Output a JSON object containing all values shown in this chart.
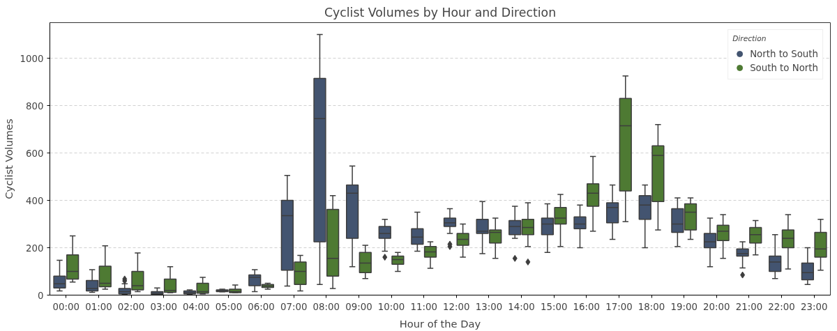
{
  "chart_data": {
    "type": "box",
    "title": "Cyclist Volumes by Hour and Direction",
    "xlabel": "Hour of the Day",
    "ylabel": "Cyclist Volumes",
    "legend_title": "Direction",
    "legend": "top right",
    "grid": "y",
    "categories": [
      "00:00",
      "01:00",
      "02:00",
      "03:00",
      "04:00",
      "05:00",
      "06:00",
      "07:00",
      "08:00",
      "09:00",
      "10:00",
      "11:00",
      "12:00",
      "13:00",
      "14:00",
      "15:00",
      "16:00",
      "17:00",
      "18:00",
      "19:00",
      "20:00",
      "21:00",
      "22:00",
      "23:00"
    ],
    "ylim": [
      0,
      1150
    ],
    "yticks": [
      0,
      200,
      400,
      600,
      800,
      1000
    ],
    "series": [
      {
        "name": "North to South",
        "color": "#435470",
        "boxes": [
          {
            "low": 18,
            "q1": 30,
            "median": 48,
            "q3": 80,
            "high": 147
          },
          {
            "low": 12,
            "q1": 18,
            "median": 28,
            "q3": 62,
            "high": 107
          },
          {
            "low": 3,
            "q1": 5,
            "median": 15,
            "q3": 28,
            "high": 48,
            "outliers": [
              60,
              68
            ]
          },
          {
            "low": 2,
            "q1": 3,
            "median": 8,
            "q3": 15,
            "high": 30
          },
          {
            "low": 3,
            "q1": 5,
            "median": 10,
            "q3": 18,
            "high": 22
          },
          {
            "low": 14,
            "q1": 15,
            "median": 18,
            "q3": 22,
            "high": 25
          },
          {
            "low": 15,
            "q1": 40,
            "median": 75,
            "q3": 85,
            "high": 107
          },
          {
            "low": 38,
            "q1": 105,
            "median": 335,
            "q3": 400,
            "high": 505
          },
          {
            "low": 45,
            "q1": 225,
            "median": 745,
            "q3": 915,
            "high": 1100
          },
          {
            "low": 120,
            "q1": 240,
            "median": 430,
            "q3": 465,
            "high": 545
          },
          {
            "low": 185,
            "q1": 240,
            "median": 260,
            "q3": 290,
            "high": 320,
            "outliers": [
              160
            ]
          },
          {
            "low": 185,
            "q1": 215,
            "median": 245,
            "q3": 280,
            "high": 350
          },
          {
            "low": 260,
            "q1": 290,
            "median": 305,
            "q3": 325,
            "high": 365,
            "outliers": [
              205,
              215
            ]
          },
          {
            "low": 175,
            "q1": 260,
            "median": 270,
            "q3": 320,
            "high": 395
          },
          {
            "low": 240,
            "q1": 255,
            "median": 290,
            "q3": 315,
            "high": 375,
            "outliers": [
              155
            ]
          },
          {
            "low": 180,
            "q1": 255,
            "median": 300,
            "q3": 325,
            "high": 385
          },
          {
            "low": 200,
            "q1": 280,
            "median": 300,
            "q3": 330,
            "high": 380
          },
          {
            "low": 235,
            "q1": 305,
            "median": 370,
            "q3": 390,
            "high": 465
          },
          {
            "low": 200,
            "q1": 320,
            "median": 380,
            "q3": 420,
            "high": 465
          },
          {
            "low": 205,
            "q1": 265,
            "median": 300,
            "q3": 365,
            "high": 410
          },
          {
            "low": 120,
            "q1": 200,
            "median": 225,
            "q3": 260,
            "high": 325
          },
          {
            "low": 115,
            "q1": 165,
            "median": 175,
            "q3": 195,
            "high": 225,
            "outliers": [
              85
            ]
          },
          {
            "low": 70,
            "q1": 100,
            "median": 140,
            "q3": 165,
            "high": 255
          },
          {
            "low": 45,
            "q1": 65,
            "median": 95,
            "q3": 135,
            "high": 200
          }
        ]
      },
      {
        "name": "South to North",
        "color": "#4e7a33",
        "boxes": [
          {
            "low": 55,
            "q1": 68,
            "median": 100,
            "q3": 170,
            "high": 250
          },
          {
            "low": 25,
            "q1": 35,
            "median": 50,
            "q3": 122,
            "high": 208
          },
          {
            "low": 15,
            "q1": 22,
            "median": 40,
            "q3": 100,
            "high": 178
          },
          {
            "low": 10,
            "q1": 12,
            "median": 20,
            "q3": 68,
            "high": 120
          },
          {
            "low": 5,
            "q1": 8,
            "median": 15,
            "q3": 50,
            "high": 75
          },
          {
            "low": 10,
            "q1": 10,
            "median": 15,
            "q3": 25,
            "high": 43
          },
          {
            "low": 25,
            "q1": 32,
            "median": 38,
            "q3": 45,
            "high": 50
          },
          {
            "low": 18,
            "q1": 45,
            "median": 100,
            "q3": 140,
            "high": 168
          },
          {
            "low": 28,
            "q1": 80,
            "median": 155,
            "q3": 362,
            "high": 420
          },
          {
            "low": 70,
            "q1": 95,
            "median": 135,
            "q3": 180,
            "high": 210
          },
          {
            "low": 100,
            "q1": 130,
            "median": 150,
            "q3": 165,
            "high": 180
          },
          {
            "low": 113,
            "q1": 160,
            "median": 182,
            "q3": 205,
            "high": 225
          },
          {
            "low": 160,
            "q1": 210,
            "median": 235,
            "q3": 260,
            "high": 300
          },
          {
            "low": 155,
            "q1": 220,
            "median": 265,
            "q3": 275,
            "high": 325
          },
          {
            "low": 205,
            "q1": 255,
            "median": 285,
            "q3": 320,
            "high": 390,
            "outliers": [
              140
            ]
          },
          {
            "low": 205,
            "q1": 300,
            "median": 325,
            "q3": 370,
            "high": 425
          },
          {
            "low": 270,
            "q1": 375,
            "median": 430,
            "q3": 470,
            "high": 585
          },
          {
            "low": 310,
            "q1": 440,
            "median": 715,
            "q3": 830,
            "high": 925
          },
          {
            "low": 275,
            "q1": 395,
            "median": 590,
            "q3": 630,
            "high": 720
          },
          {
            "low": 235,
            "q1": 275,
            "median": 350,
            "q3": 385,
            "high": 410
          },
          {
            "low": 155,
            "q1": 230,
            "median": 270,
            "q3": 295,
            "high": 340
          },
          {
            "low": 170,
            "q1": 220,
            "median": 255,
            "q3": 285,
            "high": 315
          },
          {
            "low": 110,
            "q1": 200,
            "median": 240,
            "q3": 275,
            "high": 340
          },
          {
            "low": 105,
            "q1": 160,
            "median": 195,
            "q3": 265,
            "high": 320
          }
        ]
      }
    ]
  }
}
